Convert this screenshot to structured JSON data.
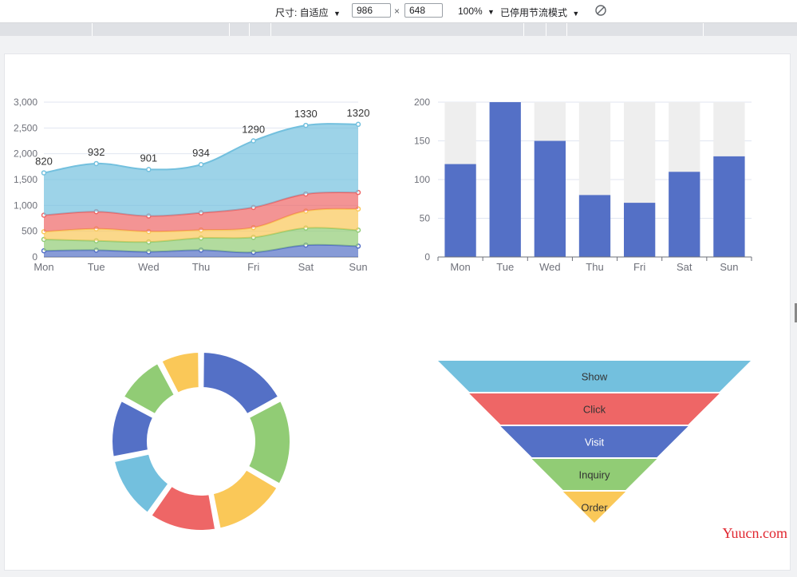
{
  "toolbar": {
    "size_label": "尺寸: 自适应",
    "width": "986",
    "times": "×",
    "height": "648",
    "zoom": "100%",
    "throttle": "已停用节流模式",
    "dropdown_arrow": "▼",
    "rotate_icon": "rotate-icon"
  },
  "watermark": "Yuucn.com",
  "chart_data": [
    {
      "type": "area",
      "stacked": true,
      "categories": [
        "Mon",
        "Tue",
        "Wed",
        "Thu",
        "Fri",
        "Sat",
        "Sun"
      ],
      "ylim": [
        0,
        3000
      ],
      "yticks": [
        "0",
        "500",
        "1,000",
        "1,500",
        "2,000",
        "2,500",
        "3,000"
      ],
      "series": [
        {
          "color": "#5470c6",
          "values": [
            120,
            132,
            101,
            134,
            90,
            230,
            210
          ]
        },
        {
          "color": "#91cc75",
          "values": [
            220,
            182,
            191,
            234,
            290,
            330,
            310
          ]
        },
        {
          "color": "#fac858",
          "values": [
            150,
            232,
            201,
            154,
            190,
            330,
            410
          ]
        },
        {
          "color": "#ee6666",
          "values": [
            320,
            332,
            301,
            334,
            390,
            330,
            320
          ]
        },
        {
          "color": "#73c0de",
          "values": [
            820,
            932,
            901,
            934,
            1290,
            1330,
            1320
          ],
          "labels": [
            "820",
            "932",
            "901",
            "934",
            "1290",
            "1330",
            "1320"
          ]
        }
      ]
    },
    {
      "type": "bar",
      "categories": [
        "Mon",
        "Tue",
        "Wed",
        "Thu",
        "Fri",
        "Sat",
        "Sun"
      ],
      "values": [
        120,
        200,
        150,
        80,
        70,
        110,
        130
      ],
      "background_max": 200,
      "ylim": [
        0,
        200
      ],
      "yticks": [
        "0",
        "50",
        "100",
        "150",
        "200"
      ],
      "color": "#5470c6",
      "background_color": "#eeeeee"
    },
    {
      "type": "pie",
      "donut": true,
      "values": [
        40,
        38,
        32,
        30,
        28,
        26,
        22,
        18
      ],
      "colors": [
        "#5470c6",
        "#91cc75",
        "#fac858",
        "#ee6666",
        "#73c0de"
      ]
    },
    {
      "type": "funnel",
      "categories": [
        "Show",
        "Click",
        "Visit",
        "Inquiry",
        "Order"
      ],
      "values": [
        100,
        80,
        60,
        40,
        20
      ],
      "colors": [
        "#73c0de",
        "#ee6666",
        "#5470c6",
        "#91cc75",
        "#fac858"
      ],
      "label_colors": [
        "#333333",
        "#333333",
        "#ffffff",
        "#333333",
        "#333333"
      ]
    }
  ]
}
